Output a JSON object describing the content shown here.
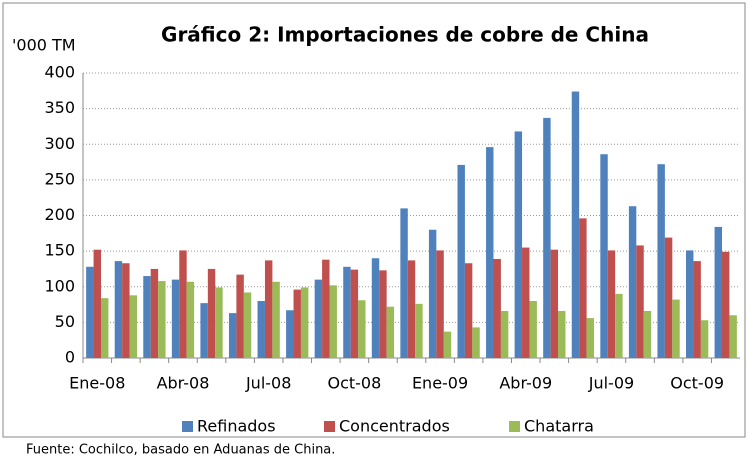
{
  "chart_data": {
    "type": "bar",
    "title": "Gráfico 2: Importaciones de cobre de China",
    "y_axis_label": "'000 TM",
    "source": "Fuente: Cochilco, basado en Aduanas de China.",
    "categories": [
      "Ene-08",
      null,
      null,
      "Abr-08",
      null,
      null,
      "Jul-08",
      null,
      null,
      "Oct-08",
      null,
      null,
      "Ene-09",
      null,
      null,
      "Abr-09",
      null,
      null,
      "Jul-09",
      null,
      null,
      "Oct-09",
      null
    ],
    "series": [
      {
        "name": "Refinados",
        "color": "#4f81bd",
        "values": [
          128,
          136,
          115,
          110,
          77,
          63,
          80,
          67,
          110,
          128,
          140,
          210,
          180,
          271,
          296,
          318,
          337,
          374,
          286,
          213,
          272,
          151,
          184
        ]
      },
      {
        "name": "Concentrados",
        "color": "#c0504d",
        "values": [
          152,
          133,
          125,
          151,
          125,
          117,
          137,
          96,
          138,
          124,
          123,
          137,
          151,
          133,
          139,
          155,
          152,
          196,
          151,
          158,
          169,
          136,
          149
        ]
      },
      {
        "name": "Chatarra",
        "color": "#9bbb59",
        "values": [
          84,
          88,
          108,
          107,
          99,
          92,
          107,
          99,
          102,
          81,
          72,
          76,
          37,
          43,
          66,
          80,
          66,
          56,
          90,
          66,
          82,
          53,
          60
        ]
      }
    ],
    "ylim": [
      0,
      400
    ],
    "yticks": [
      0,
      50,
      100,
      150,
      200,
      250,
      300,
      350,
      400
    ],
    "grid": true,
    "legend": "bottom"
  }
}
